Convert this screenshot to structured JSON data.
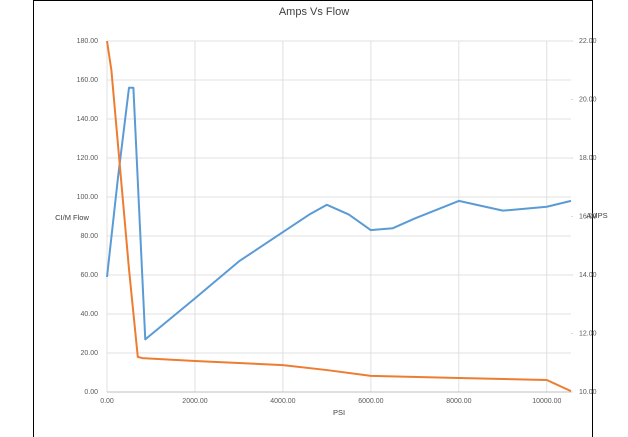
{
  "chart_data": {
    "type": "line",
    "title": "Amps Vs Flow",
    "x_label": "PSI",
    "y_label": "CI/M Flow",
    "y2_label": "AMPS",
    "xlim": [
      0,
      10550
    ],
    "ylim": [
      0,
      180
    ],
    "y2lim": [
      10,
      22
    ],
    "grid": true,
    "xticks": [
      {
        "value": 0,
        "label": "0.00"
      },
      {
        "value": 2000,
        "label": "2000.00"
      },
      {
        "value": 4000,
        "label": "4000.00"
      },
      {
        "value": 6000,
        "label": "6000.00"
      },
      {
        "value": 8000,
        "label": "8000.00"
      },
      {
        "value": 10000,
        "label": "10000.00"
      }
    ],
    "yticks": [
      {
        "value": 0,
        "label": "0.00"
      },
      {
        "value": 20,
        "label": "20.00"
      },
      {
        "value": 40,
        "label": "40.00"
      },
      {
        "value": 60,
        "label": "60.00"
      },
      {
        "value": 80,
        "label": "80.00"
      },
      {
        "value": 100,
        "label": "100.00"
      },
      {
        "value": 120,
        "label": "120.00"
      },
      {
        "value": 140,
        "label": "140.00"
      },
      {
        "value": 160,
        "label": "160.00"
      },
      {
        "value": 180,
        "label": "180.00"
      }
    ],
    "y2ticks": [
      {
        "value": 10,
        "label": "10.00"
      },
      {
        "value": 12,
        "label": "12.00"
      },
      {
        "value": 14,
        "label": "14.00"
      },
      {
        "value": 16,
        "label": "16.00"
      },
      {
        "value": 18,
        "label": "18.00"
      },
      {
        "value": 20,
        "label": "20.00"
      },
      {
        "value": 22,
        "label": "22.00"
      }
    ],
    "series": [
      {
        "name": "Flow",
        "color": "#5b9bd5",
        "axis": "y",
        "x": [
          0,
          250,
          500,
          600,
          870,
          2000,
          3000,
          4000,
          4600,
          5000,
          5500,
          6000,
          6500,
          7000,
          8000,
          9000,
          10000,
          10550
        ],
        "values": [
          59,
          110,
          156,
          156,
          27,
          48,
          67,
          82,
          91,
          96,
          91,
          83,
          84,
          89,
          98,
          93,
          95,
          98
        ]
      },
      {
        "name": "Amps",
        "color": "#ed7d31",
        "axis": "y2",
        "x": [
          0,
          100,
          300,
          500,
          700,
          800,
          2000,
          4000,
          5000,
          6000,
          8000,
          10000,
          10550
        ],
        "values": [
          22,
          21,
          17.6,
          14.2,
          11.2,
          11.16,
          11.06,
          10.92,
          10.75,
          10.55,
          10.48,
          10.41,
          10.03
        ]
      }
    ]
  }
}
